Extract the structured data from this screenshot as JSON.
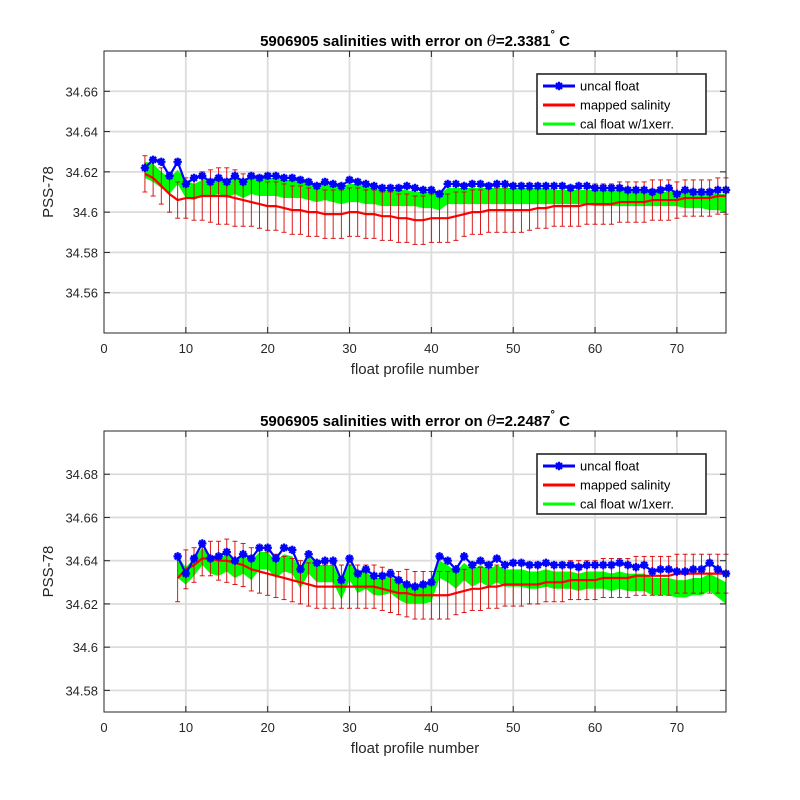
{
  "chart_data": [
    {
      "type": "line",
      "title_prefix": "5906905 salinities with error on ",
      "title_theta": "θ",
      "title_suffix": "=2.3381",
      "title_degree": "°",
      "title_unit": "C",
      "xlabel": "float profile number",
      "ylabel": "PSS-78",
      "xlim": [
        0,
        76
      ],
      "ylim": [
        34.54,
        34.68
      ],
      "xticks": [
        0,
        10,
        20,
        30,
        40,
        50,
        60,
        70
      ],
      "xtick_labels": [
        "0",
        "10",
        "20",
        "30",
        "40",
        "50",
        "60",
        "70"
      ],
      "yticks": [
        34.56,
        34.58,
        34.6,
        34.62,
        34.64,
        34.66
      ],
      "ytick_labels": [
        "34.56",
        "34.58",
        "34.6",
        "34.62",
        "34.64",
        "34.66"
      ],
      "grid": true,
      "legend_position": "top-right",
      "x": [
        5,
        6,
        7,
        8,
        9,
        10,
        11,
        12,
        13,
        14,
        15,
        16,
        17,
        18,
        19,
        20,
        21,
        22,
        23,
        24,
        25,
        26,
        27,
        28,
        29,
        30,
        31,
        32,
        33,
        34,
        35,
        36,
        37,
        38,
        39,
        40,
        41,
        42,
        43,
        44,
        45,
        46,
        47,
        48,
        49,
        50,
        51,
        52,
        53,
        54,
        55,
        56,
        57,
        58,
        59,
        60,
        61,
        62,
        63,
        64,
        65,
        66,
        67,
        68,
        69,
        70,
        71,
        72,
        73,
        74,
        75,
        76
      ],
      "series": [
        {
          "name": "uncal float",
          "color": "#0000ff",
          "marker": "asterisk",
          "values": [
            34.622,
            34.626,
            34.625,
            34.618,
            34.625,
            34.614,
            34.617,
            34.618,
            34.615,
            34.617,
            34.615,
            34.618,
            34.615,
            34.618,
            34.617,
            34.618,
            34.618,
            34.617,
            34.617,
            34.616,
            34.615,
            34.613,
            34.615,
            34.614,
            34.613,
            34.616,
            34.615,
            34.614,
            34.613,
            34.612,
            34.612,
            34.612,
            34.613,
            34.612,
            34.611,
            34.611,
            34.609,
            34.614,
            34.614,
            34.613,
            34.614,
            34.614,
            34.613,
            34.614,
            34.614,
            34.613,
            34.613,
            34.613,
            34.613,
            34.613,
            34.613,
            34.613,
            34.612,
            34.613,
            34.613,
            34.612,
            34.612,
            34.612,
            34.612,
            34.611,
            34.611,
            34.611,
            34.61,
            34.611,
            34.612,
            34.609,
            34.611,
            34.61,
            34.61,
            34.61,
            34.611,
            34.611
          ]
        },
        {
          "name": "mapped salinity",
          "color": "#ff0000",
          "values": [
            34.619,
            34.617,
            34.613,
            34.609,
            34.606,
            34.607,
            34.607,
            34.608,
            34.608,
            34.608,
            34.608,
            34.607,
            34.606,
            34.605,
            34.604,
            34.603,
            34.603,
            34.602,
            34.601,
            34.601,
            34.6,
            34.6,
            34.599,
            34.599,
            34.599,
            34.6,
            34.6,
            34.599,
            34.599,
            34.598,
            34.598,
            34.597,
            34.597,
            34.596,
            34.596,
            34.597,
            34.597,
            34.597,
            34.598,
            34.599,
            34.6,
            34.6,
            34.601,
            34.601,
            34.601,
            34.601,
            34.601,
            34.601,
            34.602,
            34.602,
            34.603,
            34.603,
            34.603,
            34.603,
            34.604,
            34.604,
            34.604,
            34.604,
            34.605,
            34.605,
            34.605,
            34.605,
            34.606,
            34.606,
            34.606,
            34.606,
            34.607,
            34.607,
            34.607,
            34.607,
            34.608,
            34.608
          ],
          "errors": [
            0.009,
            0.009,
            0.009,
            0.009,
            0.009,
            0.01,
            0.011,
            0.012,
            0.013,
            0.014,
            0.014,
            0.014,
            0.013,
            0.012,
            0.012,
            0.012,
            0.012,
            0.012,
            0.012,
            0.012,
            0.012,
            0.012,
            0.012,
            0.012,
            0.012,
            0.012,
            0.012,
            0.012,
            0.012,
            0.012,
            0.012,
            0.012,
            0.012,
            0.012,
            0.012,
            0.012,
            0.012,
            0.012,
            0.012,
            0.011,
            0.011,
            0.011,
            0.011,
            0.011,
            0.011,
            0.011,
            0.011,
            0.01,
            0.01,
            0.01,
            0.01,
            0.01,
            0.01,
            0.01,
            0.01,
            0.01,
            0.01,
            0.01,
            0.01,
            0.01,
            0.01,
            0.01,
            0.01,
            0.01,
            0.01,
            0.009,
            0.009,
            0.009,
            0.009,
            0.009,
            0.009,
            0.009
          ]
        },
        {
          "name": "cal float w/1xerr.",
          "color": "#00ff00",
          "type": "band",
          "upper": [
            34.625,
            34.624,
            34.62,
            34.617,
            34.621,
            34.616,
            34.614,
            34.616,
            34.616,
            34.618,
            34.616,
            34.618,
            34.616,
            34.617,
            34.617,
            34.617,
            34.617,
            34.616,
            34.616,
            34.616,
            34.615,
            34.614,
            34.614,
            34.613,
            34.613,
            34.614,
            34.614,
            34.613,
            34.612,
            34.611,
            34.611,
            34.611,
            34.611,
            34.61,
            34.61,
            34.61,
            34.609,
            34.612,
            34.612,
            34.612,
            34.612,
            34.612,
            34.612,
            34.612,
            34.612,
            34.612,
            34.612,
            34.612,
            34.612,
            34.612,
            34.611,
            34.611,
            34.611,
            34.611,
            34.611,
            34.611,
            34.611,
            34.611,
            34.611,
            34.611,
            34.611,
            34.61,
            34.61,
            34.61,
            34.61,
            34.61,
            34.61,
            34.61,
            34.61,
            34.61,
            34.609,
            34.609
          ],
          "lower": [
            34.617,
            34.615,
            34.612,
            34.609,
            34.614,
            34.607,
            34.606,
            34.608,
            34.608,
            34.609,
            34.607,
            34.609,
            34.607,
            34.609,
            34.608,
            34.608,
            34.608,
            34.607,
            34.607,
            34.607,
            34.606,
            34.605,
            34.606,
            34.605,
            34.604,
            34.605,
            34.605,
            34.604,
            34.604,
            34.603,
            34.603,
            34.603,
            34.603,
            34.603,
            34.602,
            34.602,
            34.601,
            34.604,
            34.604,
            34.604,
            34.604,
            34.604,
            34.604,
            34.604,
            34.604,
            34.604,
            34.604,
            34.604,
            34.604,
            34.604,
            34.604,
            34.604,
            34.604,
            34.604,
            34.604,
            34.603,
            34.603,
            34.603,
            34.603,
            34.603,
            34.603,
            34.603,
            34.603,
            34.603,
            34.603,
            34.603,
            34.602,
            34.602,
            34.602,
            34.601,
            34.601,
            34.6
          ]
        }
      ]
    },
    {
      "type": "line",
      "title_prefix": "5906905 salinities with error on ",
      "title_theta": "θ",
      "title_suffix": "=2.2487",
      "title_degree": "°",
      "title_unit": "C",
      "xlabel": "float profile number",
      "ylabel": "PSS-78",
      "xlim": [
        0,
        76
      ],
      "ylim": [
        34.57,
        34.7
      ],
      "xticks": [
        0,
        10,
        20,
        30,
        40,
        50,
        60,
        70
      ],
      "xtick_labels": [
        "0",
        "10",
        "20",
        "30",
        "40",
        "50",
        "60",
        "70"
      ],
      "yticks": [
        34.58,
        34.6,
        34.62,
        34.64,
        34.66,
        34.68
      ],
      "ytick_labels": [
        "34.58",
        "34.6",
        "34.62",
        "34.64",
        "34.66",
        "34.68"
      ],
      "grid": true,
      "legend_position": "top-right",
      "x": [
        9,
        10,
        11,
        12,
        13,
        14,
        15,
        16,
        17,
        18,
        19,
        20,
        21,
        22,
        23,
        24,
        25,
        26,
        27,
        28,
        29,
        30,
        31,
        32,
        33,
        34,
        35,
        36,
        37,
        38,
        39,
        40,
        41,
        42,
        43,
        44,
        45,
        46,
        47,
        48,
        49,
        50,
        51,
        52,
        53,
        54,
        55,
        56,
        57,
        58,
        59,
        60,
        61,
        62,
        63,
        64,
        65,
        66,
        67,
        68,
        69,
        70,
        71,
        72,
        73,
        74,
        75,
        76
      ],
      "series": [
        {
          "name": "uncal float",
          "color": "#0000ff",
          "marker": "asterisk",
          "values": [
            34.642,
            34.634,
            34.641,
            34.648,
            34.641,
            34.642,
            34.644,
            34.64,
            34.643,
            34.641,
            34.646,
            34.646,
            34.641,
            34.646,
            34.645,
            34.636,
            34.643,
            34.639,
            34.64,
            34.64,
            34.631,
            34.641,
            34.634,
            34.636,
            34.633,
            34.633,
            34.634,
            34.631,
            34.629,
            34.628,
            34.629,
            34.63,
            34.642,
            34.64,
            34.636,
            34.642,
            34.638,
            34.64,
            34.638,
            34.641,
            34.638,
            34.639,
            34.639,
            34.638,
            34.638,
            34.639,
            34.638,
            34.638,
            34.638,
            34.637,
            34.638,
            34.638,
            34.638,
            34.638,
            34.639,
            34.638,
            34.637,
            34.638,
            34.635,
            34.636,
            34.636,
            34.635,
            34.635,
            34.636,
            34.636,
            34.639,
            34.636,
            34.634
          ]
        },
        {
          "name": "mapped salinity",
          "color": "#ff0000",
          "values": [
            34.632,
            34.636,
            34.638,
            34.641,
            34.641,
            34.64,
            34.64,
            34.639,
            34.638,
            34.636,
            34.635,
            34.634,
            34.633,
            34.632,
            34.631,
            34.63,
            34.629,
            34.628,
            34.628,
            34.628,
            34.628,
            34.628,
            34.628,
            34.628,
            34.628,
            34.627,
            34.626,
            34.625,
            34.625,
            34.624,
            34.624,
            34.624,
            34.624,
            34.624,
            34.625,
            34.626,
            34.627,
            34.627,
            34.628,
            34.628,
            34.629,
            34.629,
            34.629,
            34.629,
            34.629,
            34.63,
            34.63,
            34.63,
            34.631,
            34.631,
            34.631,
            34.631,
            34.632,
            34.632,
            34.632,
            34.632,
            34.633,
            34.633,
            34.633,
            34.633,
            34.633,
            34.634,
            34.634,
            34.634,
            34.634,
            34.634,
            34.634,
            34.634
          ],
          "errors": [
            0.011,
            0.009,
            0.008,
            0.008,
            0.008,
            0.009,
            0.01,
            0.01,
            0.01,
            0.01,
            0.01,
            0.01,
            0.01,
            0.01,
            0.01,
            0.01,
            0.01,
            0.01,
            0.01,
            0.01,
            0.01,
            0.01,
            0.01,
            0.01,
            0.01,
            0.01,
            0.01,
            0.01,
            0.011,
            0.011,
            0.011,
            0.011,
            0.011,
            0.011,
            0.01,
            0.01,
            0.01,
            0.01,
            0.01,
            0.01,
            0.01,
            0.01,
            0.01,
            0.009,
            0.009,
            0.009,
            0.009,
            0.009,
            0.009,
            0.009,
            0.009,
            0.009,
            0.009,
            0.009,
            0.009,
            0.009,
            0.009,
            0.009,
            0.009,
            0.009,
            0.009,
            0.009,
            0.009,
            0.009,
            0.009,
            0.009,
            0.009,
            0.009
          ]
        },
        {
          "name": "cal float w/1xerr.",
          "color": "#00ff00",
          "type": "band",
          "upper": [
            34.642,
            34.637,
            34.641,
            34.646,
            34.642,
            34.641,
            34.643,
            34.64,
            34.642,
            34.64,
            34.644,
            34.644,
            34.64,
            34.643,
            34.642,
            34.636,
            34.642,
            34.638,
            34.638,
            34.638,
            34.63,
            34.639,
            34.634,
            34.635,
            34.632,
            34.632,
            34.633,
            34.63,
            34.628,
            34.628,
            34.628,
            34.629,
            34.64,
            34.638,
            34.635,
            34.639,
            34.636,
            34.638,
            34.636,
            34.638,
            34.636,
            34.636,
            34.636,
            34.635,
            34.635,
            34.636,
            34.635,
            34.635,
            34.635,
            34.634,
            34.635,
            34.635,
            34.635,
            34.634,
            34.635,
            34.634,
            34.634,
            34.634,
            34.632,
            34.632,
            34.632,
            34.631,
            34.631,
            34.632,
            34.632,
            34.634,
            34.632,
            34.63
          ],
          "lower": [
            34.632,
            34.629,
            34.633,
            34.638,
            34.634,
            34.633,
            34.635,
            34.632,
            34.634,
            34.631,
            34.636,
            34.636,
            34.632,
            34.635,
            34.634,
            34.627,
            34.634,
            34.63,
            34.63,
            34.63,
            34.622,
            34.631,
            34.625,
            34.627,
            34.624,
            34.624,
            34.625,
            34.622,
            34.62,
            34.62,
            34.62,
            34.621,
            34.632,
            34.63,
            34.627,
            34.631,
            34.628,
            34.63,
            34.628,
            34.63,
            34.628,
            34.628,
            34.628,
            34.627,
            34.627,
            34.628,
            34.627,
            34.627,
            34.627,
            34.626,
            34.627,
            34.627,
            34.627,
            34.626,
            34.627,
            34.626,
            34.626,
            34.626,
            34.624,
            34.624,
            34.624,
            34.623,
            34.623,
            34.624,
            34.624,
            34.626,
            34.623,
            34.62
          ]
        }
      ]
    }
  ]
}
